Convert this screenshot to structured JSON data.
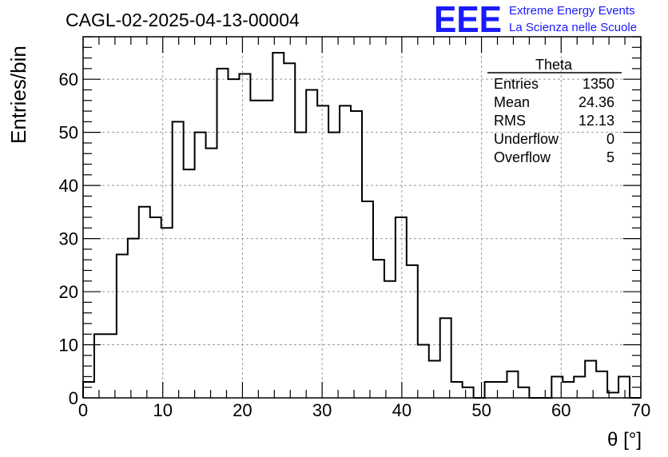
{
  "chart_data": {
    "type": "bar",
    "title": "CAGL-02-2025-04-13-00004",
    "xlabel": "θ [°]",
    "ylabel": "Entries/bin",
    "xlim": [
      0,
      70
    ],
    "ylim": [
      0,
      68
    ],
    "grid": true,
    "bin_width": 1.4,
    "x_ticks": [
      "0",
      "10",
      "20",
      "30",
      "40",
      "50",
      "60",
      "70"
    ],
    "y_ticks": [
      "0",
      "10",
      "20",
      "30",
      "40",
      "50",
      "60"
    ],
    "values": [
      3,
      12,
      12,
      27,
      30,
      36,
      34,
      32,
      52,
      43,
      50,
      47,
      62,
      60,
      61,
      56,
      56,
      65,
      63,
      50,
      58,
      55,
      50,
      55,
      54,
      37,
      26,
      22,
      34,
      25,
      10,
      7,
      15,
      3,
      2,
      0,
      3,
      3,
      5,
      2,
      0,
      0,
      4,
      3,
      4,
      7,
      5,
      1,
      4,
      0
    ],
    "stats_box": {
      "title": "Theta",
      "rows": [
        {
          "label": "Entries",
          "value": "1350"
        },
        {
          "label": "Mean",
          "value": "24.36"
        },
        {
          "label": "RMS",
          "value": "12.13"
        },
        {
          "label": "Underflow",
          "value": "0"
        },
        {
          "label": "Overflow",
          "value": "5"
        }
      ]
    },
    "logo": {
      "mark": "EEE",
      "line1": "Extreme Energy Events",
      "line2": "La Scienza nelle Scuole",
      "color": "#1a1aff"
    },
    "colors": {
      "line": "#000000",
      "grid": "#999999",
      "logo": "#1a1aff"
    }
  }
}
